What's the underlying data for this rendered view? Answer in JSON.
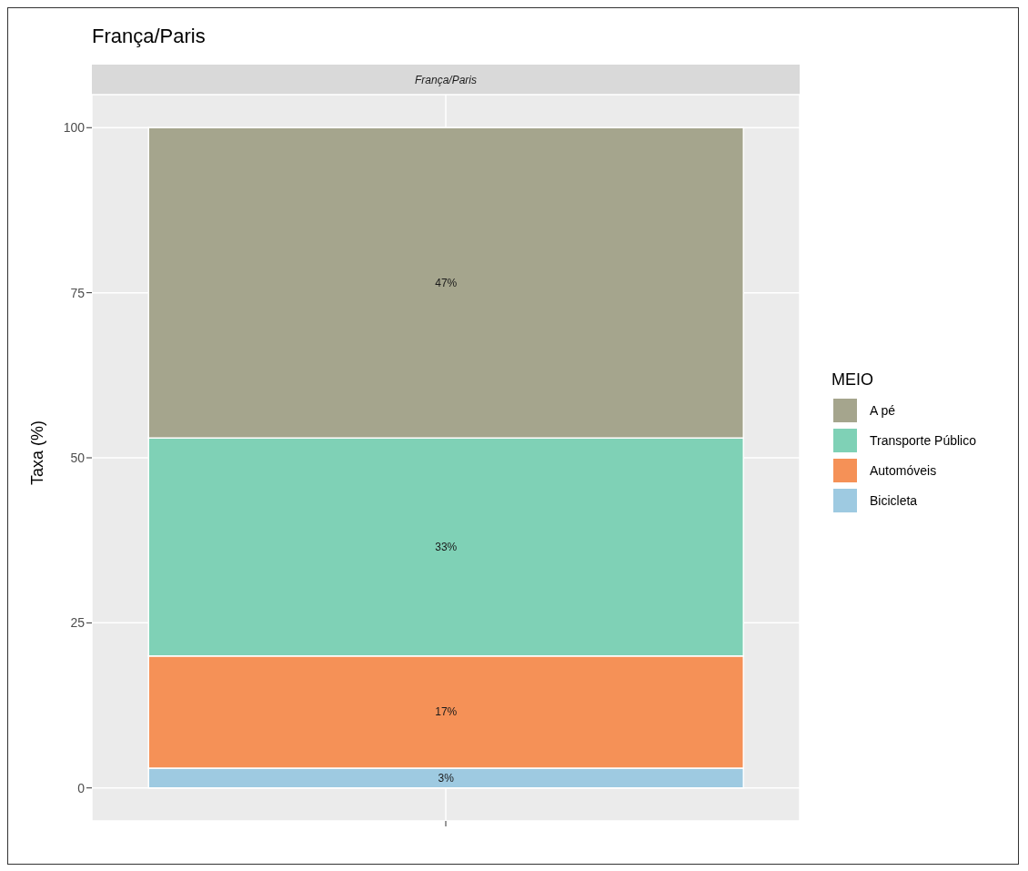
{
  "chart_data": {
    "type": "bar",
    "title": "França/Paris",
    "subtitle": "França/Paris",
    "ylabel": "Taxa (%)",
    "legend_title": "MEIO",
    "categories": [
      null
    ],
    "series": [
      {
        "name": "Bicicleta",
        "color": "#9ecae1",
        "values": [
          3
        ],
        "value_labels": [
          "3%"
        ]
      },
      {
        "name": "Automóveis",
        "color": "#f59157",
        "values": [
          17
        ],
        "value_labels": [
          "17%"
        ]
      },
      {
        "name": "Transporte Público",
        "color": "#7fd1b6",
        "values": [
          33
        ],
        "value_labels": [
          "33%"
        ]
      },
      {
        "name": "A pé",
        "color": "#a5a58d",
        "values": [
          47
        ],
        "value_labels": [
          "47%"
        ]
      }
    ],
    "stacked": true,
    "ylim": [
      -5,
      105
    ],
    "yticks": [
      0,
      25,
      50,
      75,
      100
    ],
    "grid": true,
    "legend": "right"
  }
}
